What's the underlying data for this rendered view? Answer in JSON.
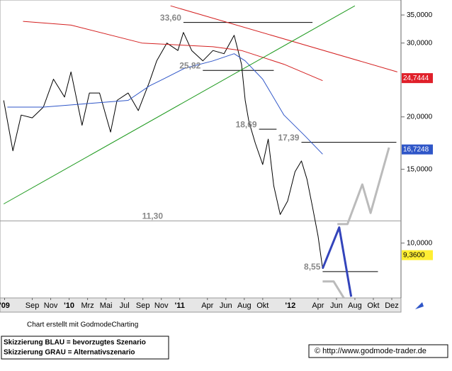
{
  "chart_data": {
    "type": "line",
    "log_y": true,
    "xlim": [
      -3.5,
      40
    ],
    "ylim": [
      7.4,
      38
    ],
    "xticks": [
      {
        "value": -3,
        "label": "'09"
      },
      {
        "value": 0,
        "label": "Sep"
      },
      {
        "value": 2,
        "label": "Nov"
      },
      {
        "value": 4,
        "label": "'10"
      },
      {
        "value": 6,
        "label": "Mrz"
      },
      {
        "value": 8,
        "label": "Mai"
      },
      {
        "value": 10,
        "label": "Jul"
      },
      {
        "value": 12,
        "label": "Sep"
      },
      {
        "value": 14,
        "label": "Nov"
      },
      {
        "value": 16,
        "label": "'11"
      },
      {
        "value": 19,
        "label": "Apr"
      },
      {
        "value": 21,
        "label": "Jun"
      },
      {
        "value": 23,
        "label": "Aug"
      },
      {
        "value": 25,
        "label": "Okt"
      },
      {
        "value": 28,
        "label": "'12"
      },
      {
        "value": 31,
        "label": "Apr"
      },
      {
        "value": 33,
        "label": "Jun"
      },
      {
        "value": 35,
        "label": "Aug"
      },
      {
        "value": 37,
        "label": "Okt"
      },
      {
        "value": 39,
        "label": "Dez"
      }
    ],
    "yticks": [
      {
        "value": 35,
        "label": "35,0000"
      },
      {
        "value": 30,
        "label": "30,0000"
      },
      {
        "value": 20,
        "label": "20,0000"
      },
      {
        "value": 15,
        "label": "15,0000"
      },
      {
        "value": 10,
        "label": "10,0000"
      }
    ],
    "series": [
      {
        "color": "#000000",
        "width": 1,
        "x": [
          -3.1,
          -2.1,
          -1.2,
          0,
          1.2,
          2.3,
          3.5,
          4.2,
          5.4,
          6.2,
          7.3,
          8.5,
          9.2,
          10.4,
          11.5,
          12.7,
          13.5,
          14.6,
          15.8,
          16.4,
          17.3,
          18.5,
          19.6,
          20.8,
          21.9,
          22.7,
          23.1,
          23.5,
          24.2,
          25,
          25.6,
          26.2,
          26.9,
          27.7,
          28.5,
          29.2,
          29.8,
          30.4,
          31,
          31.5,
          31.9
        ],
        "values": [
          21.9,
          16.6,
          20.2,
          19.9,
          21.1,
          24.6,
          22.3,
          25.6,
          19.1,
          22.8,
          22.8,
          18.4,
          21.9,
          22.8,
          20.7,
          24.2,
          27.2,
          30.0,
          28.8,
          31.8,
          28.8,
          27.2,
          28.8,
          28.3,
          31.3,
          26.7,
          21.9,
          19.5,
          17.3,
          15.4,
          17.7,
          13.7,
          11.7,
          12.6,
          14.8,
          15.7,
          14.2,
          12.2,
          10.4,
          8.7,
          9.1
        ]
      },
      {
        "color": "#d42020",
        "width": 1,
        "x": [
          -1,
          4.2,
          11.9,
          19.6,
          22.7,
          27.3,
          31.5
        ],
        "values": [
          33.8,
          33.1,
          30.0,
          29.4,
          28.8,
          26.7,
          24.4
        ]
      },
      {
        "color": "#2f56c8",
        "width": 1,
        "x": [
          -2.7,
          1.2,
          5.8,
          10.4,
          12.7,
          14.2,
          16.5,
          19.6,
          21.9,
          23.1,
          25,
          27.3,
          29.6,
          31.5
        ],
        "values": [
          21.1,
          21.1,
          21.5,
          21.9,
          23.7,
          24.6,
          26.1,
          27.2,
          28.3,
          27.2,
          24.6,
          20.2,
          18.0,
          16.3
        ]
      },
      {
        "color": "#d42020",
        "width": 1,
        "x": [
          15,
          39.6
        ],
        "values": [
          36.8,
          25.6
        ]
      },
      {
        "color": "#1e9a1e",
        "width": 1,
        "x": [
          -3.1,
          35
        ],
        "values": [
          12.4,
          36.8
        ]
      },
      {
        "color": "#3344bb",
        "width": 3,
        "x": [
          31.5,
          33.3,
          34.6
        ],
        "values": [
          8.7,
          10.9,
          7.45
        ]
      },
      {
        "color": "#bbbbbb",
        "width": 3,
        "x": [
          31.5,
          32.7,
          33.8
        ],
        "values": [
          8.1,
          8.1,
          7.4
        ]
      },
      {
        "color": "#bbbbbb",
        "width": 3,
        "x": [
          33.1,
          34.2,
          35.8,
          36.7,
          38.7
        ],
        "values": [
          11.1,
          11.1,
          13.8,
          11.8,
          16.9
        ]
      }
    ],
    "annotations": [
      {
        "label": "33,60",
        "value": 33.6,
        "x": [
          16.4,
          30.4
        ],
        "color": "#000000"
      },
      {
        "label": "25,82",
        "value": 25.82,
        "x": [
          18.5,
          26.2
        ],
        "color": "#000000"
      },
      {
        "label": "18,69",
        "value": 18.69,
        "x": [
          24.6,
          26.5
        ],
        "color": "#000000"
      },
      {
        "label": "17,39",
        "value": 17.39,
        "x": [
          29.2,
          39.5
        ],
        "color": "#000000"
      },
      {
        "label": "11,30",
        "value": 11.3,
        "x": [
          -3.5,
          40
        ],
        "color": "#999999"
      },
      {
        "label": "8,55",
        "value": 8.55,
        "x": [
          31.5,
          37.5
        ],
        "color": "#000000"
      }
    ],
    "price_labels": [
      {
        "value": 24.7444,
        "label": "24,7444",
        "color": "#e0202a",
        "text_color": "#ffffff"
      },
      {
        "value": 16.7248,
        "label": "16,7248",
        "color": "#2f56c8",
        "text_color": "#ffffff"
      },
      {
        "value": 9.36,
        "label": "9,3600",
        "color": "#ffee33",
        "text_color": "#000000"
      }
    ],
    "footer": {
      "credit": "Chart erstellt mit GodmodeCharting",
      "blue": "Skizzierung BLAU = bevorzugtes Szenario",
      "gray": "Skizzierung GRAU = Alternativszenario",
      "link": "© http://www.godmode-trader.de"
    }
  }
}
